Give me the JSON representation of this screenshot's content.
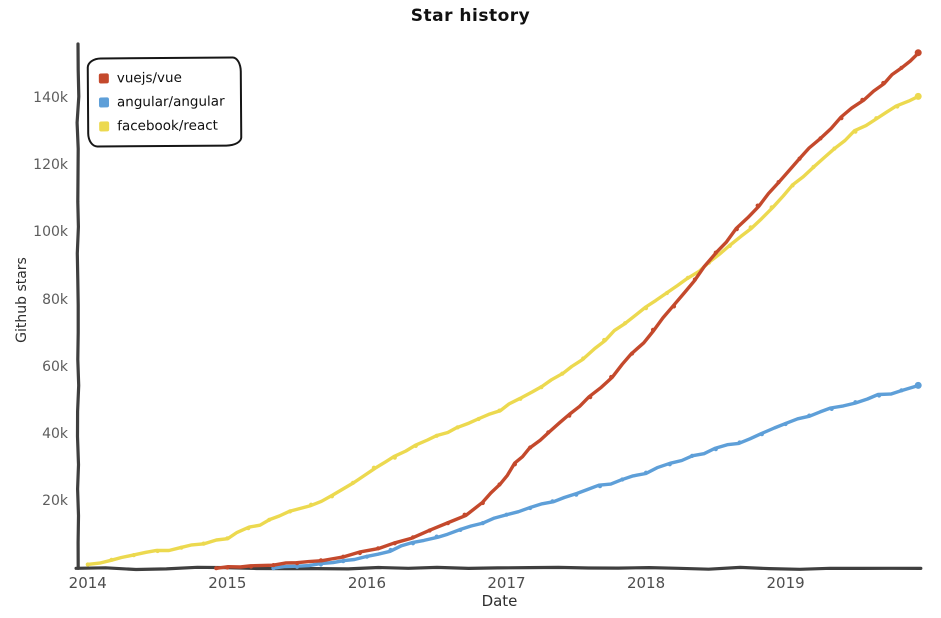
{
  "title": "Star history",
  "chart_data": {
    "type": "line",
    "title": "Star history",
    "xlabel": "Date",
    "ylabel": "Github stars",
    "style": "xkcd-hand-drawn",
    "grid": false,
    "legend_position": "top-left",
    "background_color": "#ffffff",
    "axis_color": "#3f3f3f",
    "xlim": [
      2013.93,
      2019.97
    ],
    "ylim": [
      0,
      155.5
    ],
    "x_ticks": [
      {
        "label": "2014",
        "value": 2014
      },
      {
        "label": "2015",
        "value": 2015
      },
      {
        "label": "2016",
        "value": 2016
      },
      {
        "label": "2017",
        "value": 2017
      },
      {
        "label": "2018",
        "value": 2018
      },
      {
        "label": "2019",
        "value": 2019
      }
    ],
    "y_ticks": [
      {
        "label": "20k",
        "value": 20
      },
      {
        "label": "40k",
        "value": 40
      },
      {
        "label": "60k",
        "value": 60
      },
      {
        "label": "80k",
        "value": 80
      },
      {
        "label": "100k",
        "value": 100
      },
      {
        "label": "120k",
        "value": 120
      },
      {
        "label": "140k",
        "value": 140
      }
    ],
    "y_unit": "thousands of stars",
    "series": [
      {
        "name": "vuejs/vue",
        "color": "#c4492c",
        "x": [
          2014.92,
          2015.0,
          2015.17,
          2015.33,
          2015.5,
          2015.67,
          2015.83,
          2015.95,
          2016.08,
          2016.2,
          2016.33,
          2016.45,
          2016.58,
          2016.7,
          2016.83,
          2016.95,
          2017.06,
          2017.17,
          2017.3,
          2017.45,
          2017.6,
          2017.75,
          2017.9,
          2018.05,
          2018.2,
          2018.35,
          2018.5,
          2018.65,
          2018.8,
          2018.95,
          2019.1,
          2019.25,
          2019.4,
          2019.55,
          2019.7,
          2019.83,
          2019.95
        ],
        "y": [
          0.1,
          0.3,
          0.6,
          1.0,
          1.6,
          2.4,
          3.5,
          4.6,
          6.0,
          7.5,
          9.3,
          11.3,
          13.5,
          16,
          19.5,
          25,
          31,
          36,
          40.5,
          45.5,
          51,
          57,
          64,
          71,
          78,
          86,
          94,
          101,
          108,
          115,
          122,
          128,
          134,
          139.5,
          144.5,
          149,
          153.5
        ]
      },
      {
        "name": "angular/angular",
        "color": "#5e9fd8",
        "x": [
          2015.33,
          2015.5,
          2015.67,
          2015.83,
          2016.0,
          2016.17,
          2016.33,
          2016.5,
          2016.67,
          2016.83,
          2017.0,
          2017.17,
          2017.33,
          2017.5,
          2017.67,
          2017.83,
          2018.0,
          2018.17,
          2018.33,
          2018.5,
          2018.67,
          2018.83,
          2019.0,
          2019.17,
          2019.33,
          2019.5,
          2019.67,
          2019.83,
          2019.95
        ],
        "y": [
          0.1,
          0.5,
          1.2,
          2.2,
          3.5,
          5.5,
          7.5,
          9.5,
          11.5,
          13.5,
          16,
          18,
          20,
          22,
          24.5,
          26.5,
          28.5,
          31,
          33.5,
          35.5,
          37.5,
          40,
          43,
          45.5,
          47.5,
          49.5,
          51.5,
          53,
          54.5
        ]
      },
      {
        "name": "facebook/react",
        "color": "#ecd94f",
        "x": [
          2014.0,
          2014.17,
          2014.33,
          2014.5,
          2014.67,
          2014.83,
          2015.0,
          2015.15,
          2015.3,
          2015.45,
          2015.6,
          2015.75,
          2015.9,
          2016.05,
          2016.2,
          2016.35,
          2016.5,
          2016.65,
          2016.8,
          2016.95,
          2017.1,
          2017.25,
          2017.4,
          2017.55,
          2017.7,
          2017.85,
          2018.0,
          2018.15,
          2018.3,
          2018.45,
          2018.6,
          2018.75,
          2018.9,
          2019.05,
          2019.2,
          2019.35,
          2019.5,
          2019.65,
          2019.8,
          2019.95
        ],
        "y": [
          1.2,
          2.6,
          4.0,
          5.2,
          6.2,
          7.4,
          9,
          12,
          14.5,
          17,
          19,
          21.5,
          25.5,
          30,
          33,
          36.5,
          39.5,
          42,
          44.5,
          47,
          50.5,
          54,
          58,
          62.5,
          68,
          73,
          77.5,
          82,
          86.5,
          91,
          96,
          101.5,
          107.5,
          114,
          119.5,
          125,
          130,
          134,
          137.5,
          140.5
        ]
      }
    ]
  }
}
